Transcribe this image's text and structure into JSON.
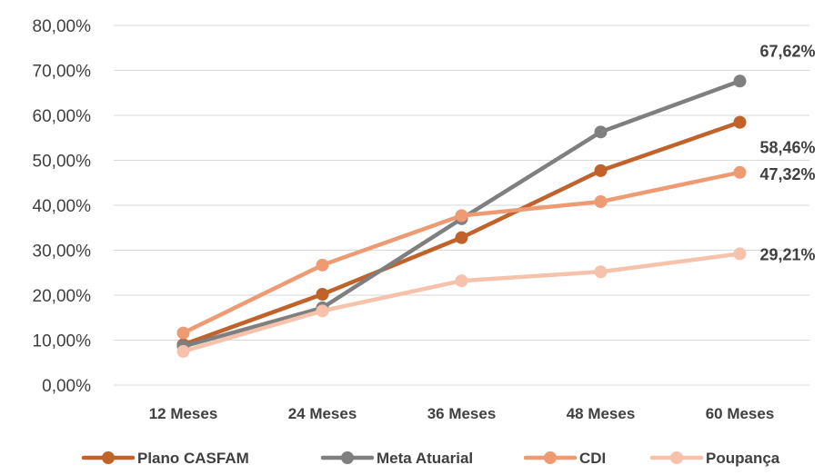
{
  "chart_data": {
    "type": "line",
    "categories": [
      "12 Meses",
      "24 Meses",
      "36 Meses",
      "48 Meses",
      "60 Meses"
    ],
    "ylim": [
      0,
      80
    ],
    "yticks": [
      0,
      10,
      20,
      30,
      40,
      50,
      60,
      70,
      80
    ],
    "ytick_labels": [
      "0,00%",
      "10,00%",
      "20,00%",
      "30,00%",
      "40,00%",
      "50,00%",
      "60,00%",
      "70,00%",
      "80,00%"
    ],
    "grid": true,
    "legend_position": "bottom",
    "series": [
      {
        "name": "Plano CASFAM",
        "color": "#C0622A",
        "values": [
          9.0,
          20.2,
          32.8,
          47.7,
          58.46
        ],
        "end_label": "58,46%"
      },
      {
        "name": "Meta Atuarial",
        "color": "#7F7F7F",
        "values": [
          8.6,
          17.2,
          37.0,
          56.3,
          67.62
        ],
        "end_label": "67,62%"
      },
      {
        "name": "CDI",
        "color": "#EE9A73",
        "values": [
          11.6,
          26.7,
          37.7,
          40.8,
          47.32
        ],
        "end_label": "47,32%"
      },
      {
        "name": "Poupança",
        "color": "#F6C2AC",
        "values": [
          7.5,
          16.5,
          23.2,
          25.2,
          29.21
        ],
        "end_label": "29,21%"
      }
    ]
  }
}
